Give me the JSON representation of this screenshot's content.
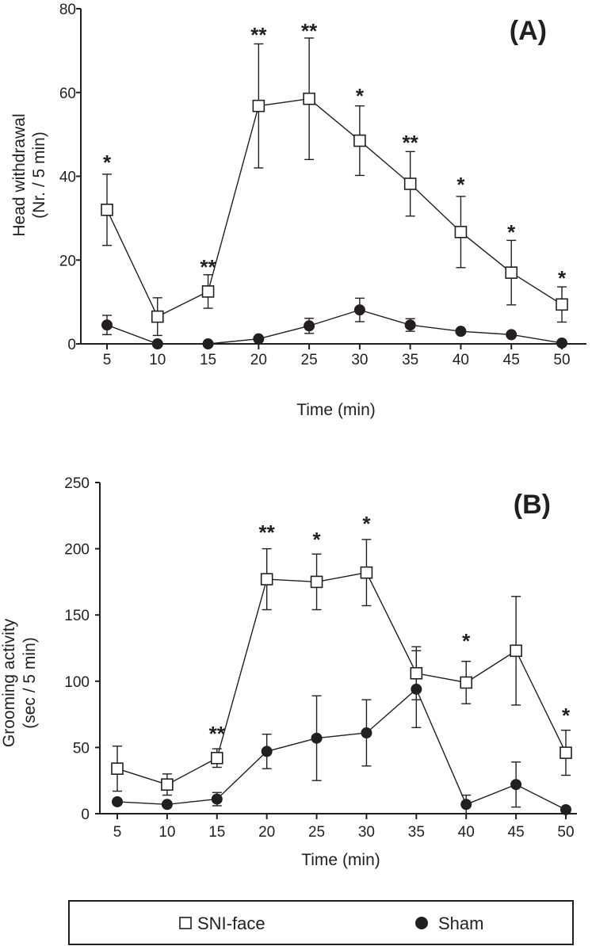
{
  "chart_data": [
    {
      "type": "line",
      "panel_label": "(A)",
      "x": [
        5,
        10,
        15,
        20,
        25,
        30,
        35,
        40,
        45,
        50
      ],
      "ylim": [
        0,
        80
      ],
      "yticks": [
        0,
        20,
        40,
        60,
        80
      ],
      "xlabel": "Time (min)",
      "ylabel_lines": [
        "Head withdrawal",
        "(Nr. / 5 min)"
      ],
      "series": [
        {
          "name": "SNI-face",
          "marker": "open-square",
          "values": [
            32,
            6.5,
            12.5,
            56.8,
            58.5,
            48.5,
            38.2,
            26.7,
            17,
            9.4
          ],
          "errors": [
            8.5,
            4.5,
            4,
            14.8,
            14.5,
            8.3,
            7.7,
            8.5,
            7.7,
            4.2
          ]
        },
        {
          "name": "Sham",
          "marker": "filled-circle",
          "values": [
            4.5,
            0,
            0,
            1.2,
            4.3,
            8.1,
            4.5,
            3,
            2.2,
            0.2
          ],
          "errors": [
            2.3,
            0,
            0,
            0,
            1.8,
            2.8,
            1.5,
            0,
            0,
            0
          ]
        }
      ],
      "significance": [
        "*",
        "",
        "**",
        "**",
        "**",
        "*",
        "**",
        "*",
        "*",
        "*"
      ]
    },
    {
      "type": "line",
      "panel_label": "(B)",
      "x": [
        5,
        10,
        15,
        20,
        25,
        30,
        35,
        40,
        45,
        50
      ],
      "ylim": [
        0,
        250
      ],
      "yticks": [
        0,
        50,
        100,
        150,
        200,
        250
      ],
      "xlabel": "Time (min)",
      "ylabel_lines": [
        "Grooming activity",
        "(sec / 5 min)"
      ],
      "series": [
        {
          "name": "SNI-face",
          "marker": "open-square",
          "values": [
            34,
            22,
            42,
            177,
            175,
            182,
            106,
            99,
            123,
            46
          ],
          "errors": [
            17,
            8,
            7,
            23,
            21,
            25,
            20,
            16,
            41,
            17
          ]
        },
        {
          "name": "Sham",
          "marker": "filled-circle",
          "values": [
            9,
            7,
            11,
            47,
            57,
            61,
            94,
            7,
            22,
            3
          ],
          "errors": [
            0,
            0,
            5,
            13,
            32,
            25,
            29,
            7,
            17,
            0
          ]
        }
      ],
      "significance": [
        "",
        "",
        "**",
        "**",
        "*",
        "*",
        "",
        "*",
        "",
        "*"
      ]
    }
  ],
  "legend": {
    "items": [
      {
        "label": "SNI-face",
        "marker": "open-square"
      },
      {
        "label": "Sham",
        "marker": "filled-circle"
      }
    ]
  },
  "colors": {
    "ink": "#231f20",
    "background": "#ffffff"
  }
}
